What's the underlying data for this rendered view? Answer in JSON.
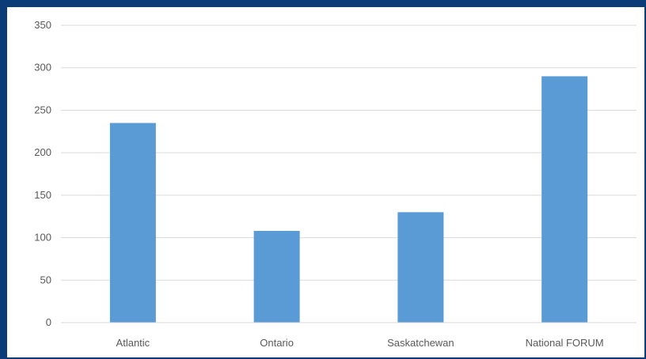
{
  "chart_data": {
    "type": "bar",
    "title": "",
    "xlabel": "",
    "ylabel": "",
    "categories": [
      "Atlantic",
      "Ontario",
      "Saskatchewan",
      "National FORUM"
    ],
    "values": [
      235,
      108,
      130,
      290
    ],
    "ylim": [
      0,
      350
    ],
    "yticks": [
      0,
      50,
      100,
      150,
      200,
      250,
      300,
      350
    ],
    "grid": true,
    "legend": "none",
    "bar_color": "#5b9bd5",
    "grid_color": "#d9d9d9"
  },
  "frame_color": "#0b3c78"
}
